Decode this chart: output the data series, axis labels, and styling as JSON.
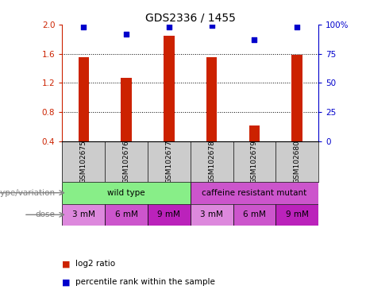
{
  "title": "GDS2336 / 1455",
  "samples": [
    "GSM102675",
    "GSM102676",
    "GSM102677",
    "GSM102678",
    "GSM102679",
    "GSM102680"
  ],
  "log2_ratio": [
    1.55,
    1.27,
    1.84,
    1.55,
    0.62,
    1.59
  ],
  "percentile": [
    98,
    92,
    98,
    99,
    87,
    98
  ],
  "ylim_left": [
    0.4,
    2.0
  ],
  "ylim_right": [
    0,
    100
  ],
  "yticks_left": [
    0.4,
    0.8,
    1.2,
    1.6,
    2.0
  ],
  "yticks_right": [
    0,
    25,
    50,
    75,
    100
  ],
  "bar_color": "#cc2200",
  "dot_color": "#0000cc",
  "bar_width": 0.25,
  "bar_bottom": 0.4,
  "genotype_groups": [
    {
      "label": "wild type",
      "spans": [
        0,
        3
      ],
      "color": "#88ee88"
    },
    {
      "label": "caffeine resistant mutant",
      "spans": [
        3,
        6
      ],
      "color": "#cc55cc"
    }
  ],
  "dose_labels": [
    "3 mM",
    "6 mM",
    "9 mM",
    "3 mM",
    "6 mM",
    "9 mM"
  ],
  "dose_colors": [
    "#dd88dd",
    "#cc55cc",
    "#bb22bb",
    "#dd88dd",
    "#cc55cc",
    "#bb22bb"
  ],
  "label_genotype": "genotype/variation",
  "label_dose": "dose",
  "legend_red": "log2 ratio",
  "legend_blue": "percentile rank within the sample",
  "tick_color_left": "#cc2200",
  "tick_color_right": "#0000cc",
  "bg_color": "#ffffff",
  "sample_bg": "#cccccc"
}
